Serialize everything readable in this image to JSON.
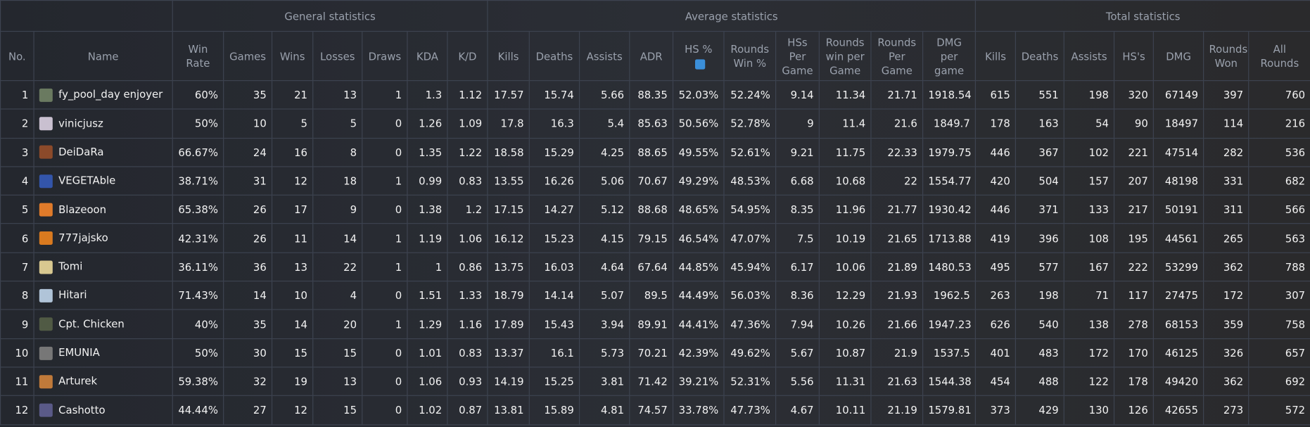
{
  "table": {
    "groups": [
      "General statistics",
      "Average statistics",
      "Total statistics"
    ],
    "columns": [
      "No.",
      "Name",
      "Win Rate",
      "Games",
      "Wins",
      "Losses",
      "Draws",
      "KDA",
      "K/D",
      "Kills",
      "Deaths",
      "Assists",
      "ADR",
      "HS %",
      "Rounds Win %",
      "HSs Per Game",
      "Rounds win per Game",
      "Rounds Per Game",
      "DMG per game",
      "Kills",
      "Deaths",
      "Assists",
      "HS's",
      "DMG",
      "Rounds Won",
      "All Rounds"
    ],
    "rows": [
      [
        "1",
        "fy_pool_day enjoyer",
        "60%",
        "35",
        "21",
        "13",
        "1",
        "1.3",
        "1.12",
        "17.57",
        "15.74",
        "5.66",
        "88.35",
        "52.03%",
        "52.24%",
        "9.14",
        "11.34",
        "21.71",
        "1918.54",
        "615",
        "551",
        "198",
        "320",
        "67149",
        "397",
        "760"
      ],
      [
        "2",
        "vinicjusz",
        "50%",
        "10",
        "5",
        "5",
        "0",
        "1.26",
        "1.09",
        "17.8",
        "16.3",
        "5.4",
        "85.63",
        "50.56%",
        "52.78%",
        "9",
        "11.4",
        "21.6",
        "1849.7",
        "178",
        "163",
        "54",
        "90",
        "18497",
        "114",
        "216"
      ],
      [
        "3",
        "DeiDaRa",
        "66.67%",
        "24",
        "16",
        "8",
        "0",
        "1.35",
        "1.22",
        "18.58",
        "15.29",
        "4.25",
        "88.65",
        "49.55%",
        "52.61%",
        "9.21",
        "11.75",
        "22.33",
        "1979.75",
        "446",
        "367",
        "102",
        "221",
        "47514",
        "282",
        "536"
      ],
      [
        "4",
        "VEGETAble",
        "38.71%",
        "31",
        "12",
        "18",
        "1",
        "0.99",
        "0.83",
        "13.55",
        "16.26",
        "5.06",
        "70.67",
        "49.29%",
        "48.53%",
        "6.68",
        "10.68",
        "22",
        "1554.77",
        "420",
        "504",
        "157",
        "207",
        "48198",
        "331",
        "682"
      ],
      [
        "5",
        "Blazeoon",
        "65.38%",
        "26",
        "17",
        "9",
        "0",
        "1.38",
        "1.2",
        "17.15",
        "14.27",
        "5.12",
        "88.68",
        "48.65%",
        "54.95%",
        "8.35",
        "11.96",
        "21.77",
        "1930.42",
        "446",
        "371",
        "133",
        "217",
        "50191",
        "311",
        "566"
      ],
      [
        "6",
        "777jajsko",
        "42.31%",
        "26",
        "11",
        "14",
        "1",
        "1.19",
        "1.06",
        "16.12",
        "15.23",
        "4.15",
        "79.15",
        "46.54%",
        "47.07%",
        "7.5",
        "10.19",
        "21.65",
        "1713.88",
        "419",
        "396",
        "108",
        "195",
        "44561",
        "265",
        "563"
      ],
      [
        "7",
        "Tomi",
        "36.11%",
        "36",
        "13",
        "22",
        "1",
        "1",
        "0.86",
        "13.75",
        "16.03",
        "4.64",
        "67.64",
        "44.85%",
        "45.94%",
        "6.17",
        "10.06",
        "21.89",
        "1480.53",
        "495",
        "577",
        "167",
        "222",
        "53299",
        "362",
        "788"
      ],
      [
        "8",
        "Hitari",
        "71.43%",
        "14",
        "10",
        "4",
        "0",
        "1.51",
        "1.33",
        "18.79",
        "14.14",
        "5.07",
        "89.5",
        "44.49%",
        "56.03%",
        "8.36",
        "12.29",
        "21.93",
        "1962.5",
        "263",
        "198",
        "71",
        "117",
        "27475",
        "172",
        "307"
      ],
      [
        "9",
        "Cpt. Chicken",
        "40%",
        "35",
        "14",
        "20",
        "1",
        "1.29",
        "1.16",
        "17.89",
        "15.43",
        "3.94",
        "89.91",
        "44.41%",
        "47.36%",
        "7.94",
        "10.26",
        "21.66",
        "1947.23",
        "626",
        "540",
        "138",
        "278",
        "68153",
        "359",
        "758"
      ],
      [
        "10",
        "EMUNIA",
        "50%",
        "30",
        "15",
        "15",
        "0",
        "1.01",
        "0.83",
        "13.37",
        "16.1",
        "5.73",
        "70.21",
        "42.39%",
        "49.62%",
        "5.67",
        "10.87",
        "21.9",
        "1537.5",
        "401",
        "483",
        "172",
        "170",
        "46125",
        "326",
        "657"
      ],
      [
        "11",
        "Arturek",
        "59.38%",
        "32",
        "19",
        "13",
        "0",
        "1.06",
        "0.93",
        "14.19",
        "15.25",
        "3.81",
        "71.42",
        "39.21%",
        "52.31%",
        "5.56",
        "11.31",
        "21.63",
        "1544.38",
        "454",
        "488",
        "122",
        "178",
        "49420",
        "362",
        "692"
      ],
      [
        "12",
        "Cashotto",
        "44.44%",
        "27",
        "12",
        "15",
        "0",
        "1.02",
        "0.87",
        "13.81",
        "15.89",
        "4.81",
        "74.57",
        "33.78%",
        "47.73%",
        "4.67",
        "10.11",
        "21.19",
        "1579.81",
        "373",
        "429",
        "130",
        "126",
        "42655",
        "273",
        "572"
      ]
    ]
  }
}
